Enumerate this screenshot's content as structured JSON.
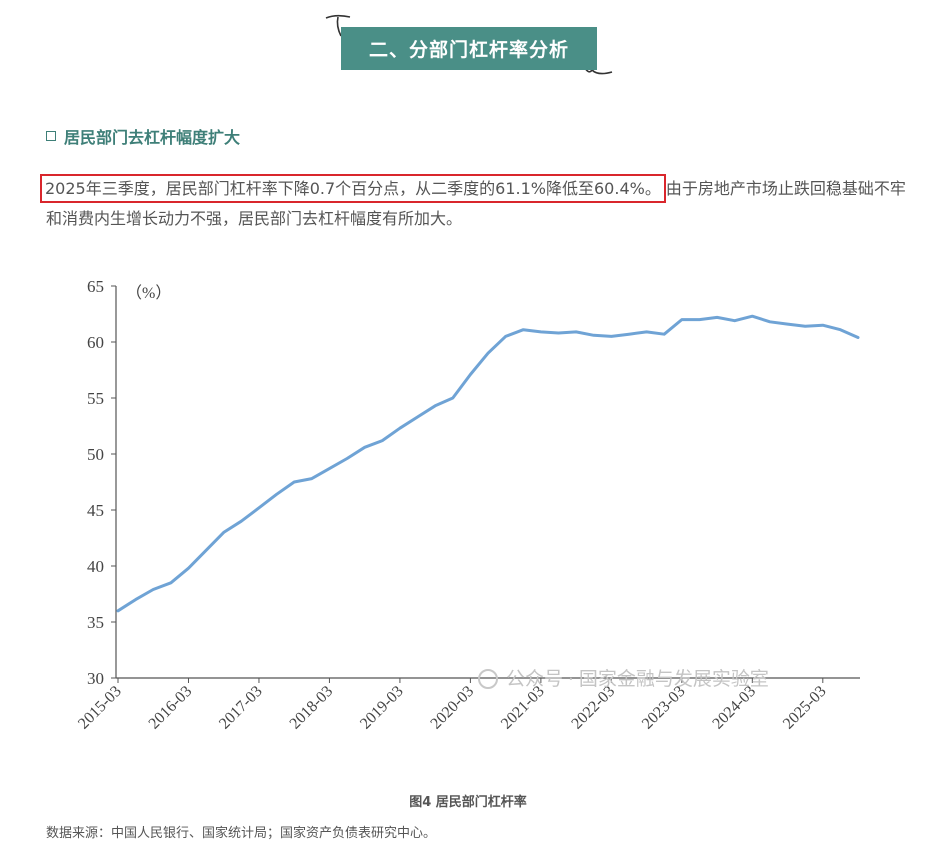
{
  "section_title": "二、分部门杠杆率分析",
  "subheading": "居民部门去杠杆幅度扩大",
  "paragraph": {
    "highlighted": "2025年三季度，居民部门杠杆率下降0.7个百分点，从二季度的61.1%降低至60.4%。",
    "rest": "由于房地产市场止跌回稳基础不牢和消费内生增长动力不强，居民部门去杠杆幅度有所加大。"
  },
  "watermark": "公众号 · 国家金融与发展实验室",
  "caption": "图4  居民部门杠杆率",
  "source": "数据来源：中国人民银行、国家统计局；国家资产负债表研究中心。",
  "colors": {
    "banner": "#4a8f87",
    "line": "#6fa3d5",
    "highlight_border": "#d9262c"
  },
  "chart_data": {
    "type": "line",
    "unit_label": "（%）",
    "ylim": [
      30,
      65
    ],
    "y_ticks": [
      "30",
      "35",
      "40",
      "45",
      "50",
      "55",
      "60",
      "65"
    ],
    "x_ticks": [
      "2015-03",
      "2016-03",
      "2017-03",
      "2018-03",
      "2019-03",
      "2020-03",
      "2021-03",
      "2022-03",
      "2023-03",
      "2024-03",
      "2025-03"
    ],
    "x": [
      "2015-03",
      "2015-06",
      "2015-09",
      "2015-12",
      "2016-03",
      "2016-06",
      "2016-09",
      "2016-12",
      "2017-03",
      "2017-06",
      "2017-09",
      "2017-12",
      "2018-03",
      "2018-06",
      "2018-09",
      "2018-12",
      "2019-03",
      "2019-06",
      "2019-09",
      "2019-12",
      "2020-03",
      "2020-06",
      "2020-09",
      "2020-12",
      "2021-03",
      "2021-06",
      "2021-09",
      "2021-12",
      "2022-03",
      "2022-06",
      "2022-09",
      "2022-12",
      "2023-03",
      "2023-06",
      "2023-09",
      "2023-12",
      "2024-03",
      "2024-06",
      "2024-09",
      "2024-12",
      "2025-03",
      "2025-06",
      "2025-09"
    ],
    "values": [
      36.0,
      37.0,
      37.9,
      38.5,
      39.8,
      41.4,
      43.0,
      44.0,
      45.2,
      46.4,
      47.5,
      47.8,
      48.7,
      49.6,
      50.6,
      51.2,
      52.3,
      53.3,
      54.3,
      55.0,
      57.1,
      59.0,
      60.5,
      61.1,
      60.9,
      60.8,
      60.9,
      60.6,
      60.5,
      60.7,
      60.9,
      60.7,
      62.0,
      62.0,
      62.2,
      61.9,
      62.3,
      61.8,
      61.6,
      61.4,
      61.5,
      61.1,
      60.4
    ]
  }
}
